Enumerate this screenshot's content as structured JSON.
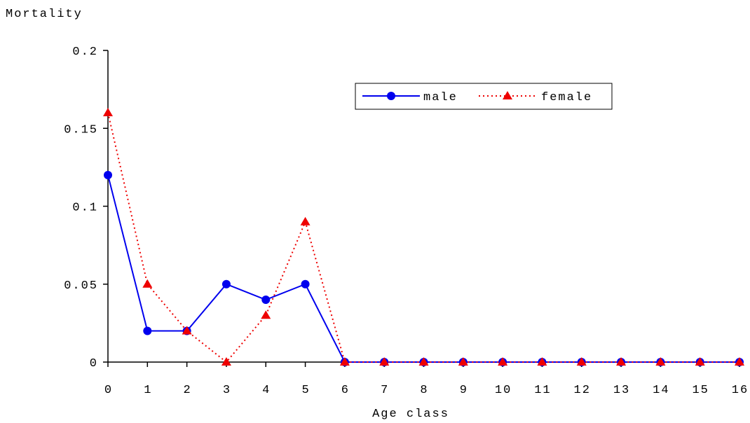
{
  "chart_data": {
    "type": "line",
    "ylabel": "Mortality",
    "xlabel": "Age class",
    "x": [
      0,
      1,
      2,
      3,
      4,
      5,
      6,
      7,
      8,
      9,
      10,
      11,
      12,
      13,
      14,
      15,
      16
    ],
    "xticks": [
      "0",
      "1",
      "2",
      "3",
      "4",
      "5",
      "6",
      "7",
      "8",
      "9",
      "10",
      "11",
      "12",
      "13",
      "14",
      "15",
      "16"
    ],
    "yticks": [
      {
        "value": 0,
        "label": "0"
      },
      {
        "value": 0.05,
        "label": "0.05"
      },
      {
        "value": 0.1,
        "label": "0.1"
      },
      {
        "value": 0.15,
        "label": "0.15"
      },
      {
        "value": 0.2,
        "label": "0.2"
      }
    ],
    "ylim": [
      0,
      0.2
    ],
    "xlim": [
      0,
      16
    ],
    "grid": false,
    "legend_position": "top-right",
    "series": [
      {
        "name": "male",
        "color": "#0000ee",
        "line": "solid",
        "marker": "circle",
        "values": [
          0.12,
          0.02,
          0.02,
          0.05,
          0.04,
          0.05,
          0,
          0,
          0,
          0,
          0,
          0,
          0,
          0,
          0,
          0,
          0
        ]
      },
      {
        "name": "female",
        "color": "#ee0000",
        "line": "dotted",
        "marker": "triangle",
        "values": [
          0.16,
          0.05,
          0.02,
          0,
          0.03,
          0.09,
          0,
          0,
          0,
          0,
          0,
          0,
          0,
          0,
          0,
          0,
          0
        ]
      }
    ]
  }
}
